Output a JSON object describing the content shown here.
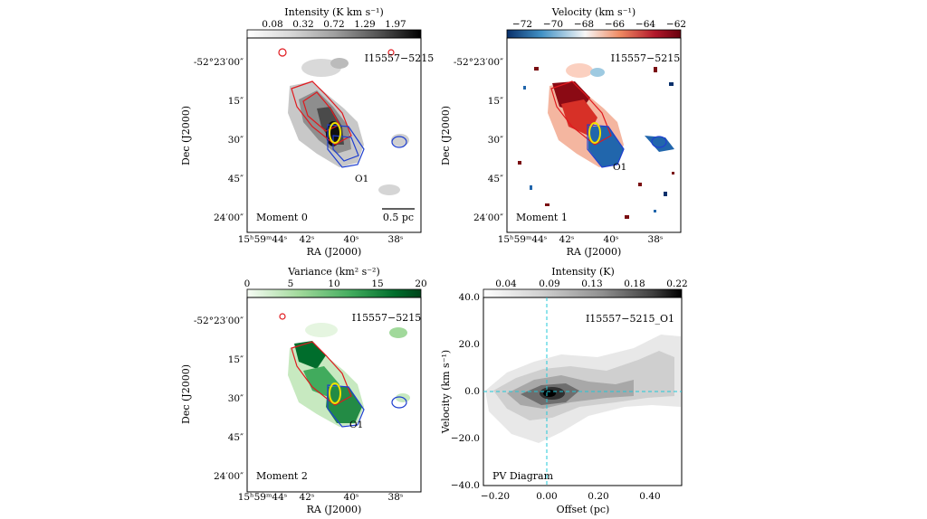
{
  "figure": {
    "panels": [
      {
        "id": "moment0",
        "label": "Moment 0",
        "source": "I15557−5215",
        "outflow_label": "O1",
        "scalebar_label": "0.5 pc",
        "colorbar": {
          "title": "Intensity (K km s⁻¹)",
          "ticks": [
            "0.08",
            "0.32",
            "0.72",
            "1.29",
            "1.97"
          ],
          "stops": [
            "#ffffff",
            "#d8d8d8",
            "#a0a0a0",
            "#555555",
            "#000000"
          ]
        },
        "xlabel": "RA (J2000)",
        "ylabel": "Dec (J2000)"
      },
      {
        "id": "moment1",
        "label": "Moment 1",
        "source": "I15557−5215",
        "outflow_label": "O1",
        "colorbar": {
          "title": "Velocity (km s⁻¹)",
          "ticks": [
            "−72",
            "−70",
            "−68",
            "−66",
            "−64",
            "−62"
          ],
          "stops": [
            "#08306b",
            "#4292c6",
            "#f7f7f7",
            "#ef8a62",
            "#b2182b",
            "#67000d"
          ]
        },
        "xlabel": "RA (J2000)",
        "ylabel": "Dec (J2000)"
      },
      {
        "id": "moment2",
        "label": "Moment 2",
        "source": "I15557−5215",
        "outflow_label": "O1",
        "colorbar": {
          "title": "Variance (km² s⁻²)",
          "ticks": [
            "0",
            "5",
            "10",
            "15",
            "20"
          ],
          "stops": [
            "#f7fcf5",
            "#a1d99b",
            "#41ab5d",
            "#006d2c",
            "#00441b"
          ]
        },
        "xlabel": "RA (J2000)",
        "ylabel": "Dec (J2000)"
      },
      {
        "id": "pv",
        "label": "PV Diagram",
        "source": "I15557−5215_O1",
        "colorbar": {
          "title": "Intensity (K)",
          "ticks": [
            "0.04",
            "0.09",
            "0.13",
            "0.18",
            "0.22"
          ],
          "stops": [
            "#ffffff",
            "#cfcfcf",
            "#8f8f8f",
            "#404040",
            "#000000"
          ]
        },
        "xlabel": "Offset (pc)",
        "ylabel": "Velocity (km s⁻¹)",
        "xticks": [
          "−0.20",
          "0.00",
          "0.20",
          "0.40"
        ],
        "yticks": [
          "40.0",
          "20.0",
          "0.0",
          "−20.0",
          "−40.0"
        ]
      }
    ],
    "ra_ticks": [
      "42ˢ",
      "40ˢ",
      "38ˢ"
    ],
    "ra_first_tick": "15ʰ59ᵐ44ˢ",
    "dec_ticks": [
      "-52°23′00″",
      "15″",
      "30″",
      "45″",
      "24′00″"
    ],
    "colors": {
      "red_contour": "#e0191e",
      "blue_contour": "#1f3fd0",
      "ellipse": "#f0e000",
      "pv_guide": "#22c8d8"
    }
  }
}
